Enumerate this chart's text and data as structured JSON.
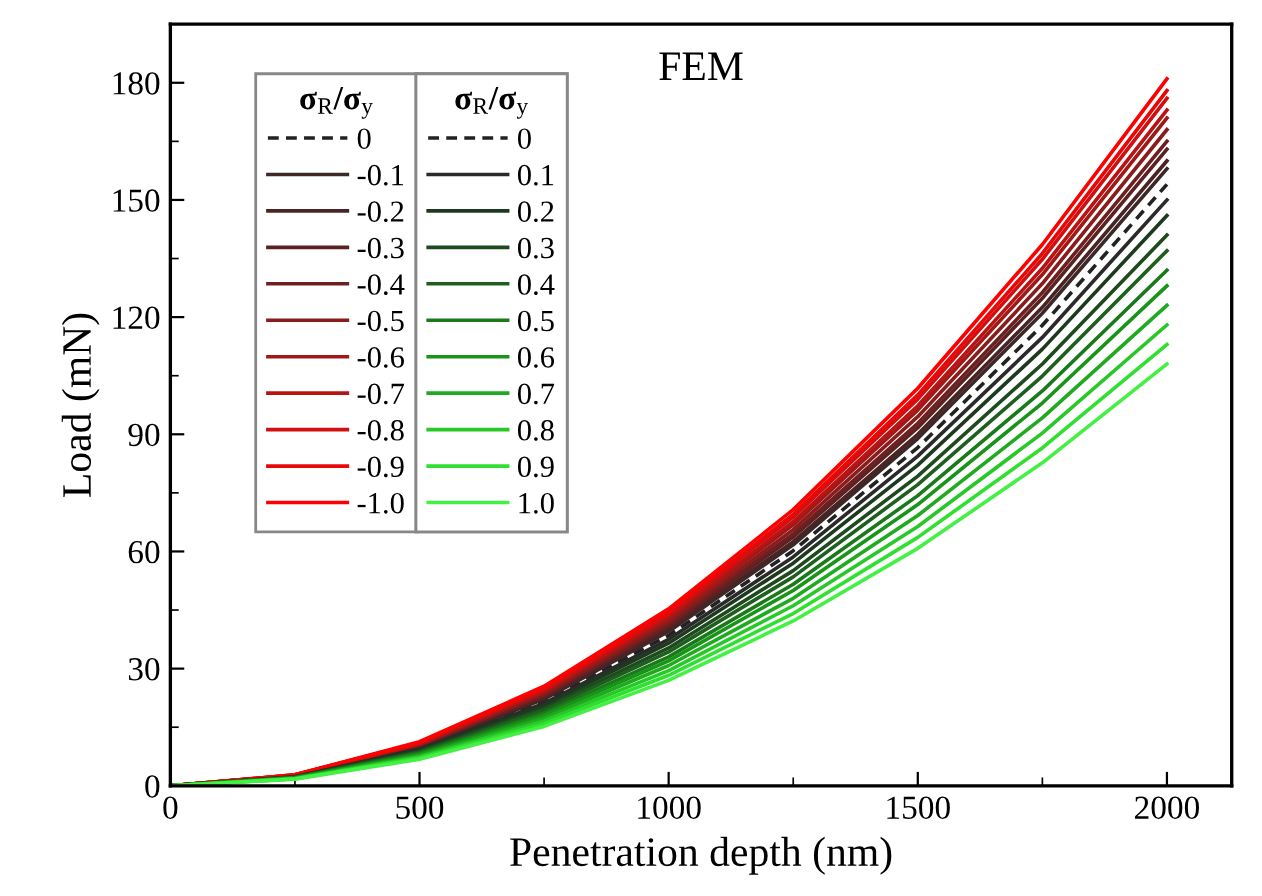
{
  "chart_data": {
    "type": "line",
    "title": "FEM",
    "xlabel": "Penetration depth (nm)",
    "ylabel": "Load (mN)",
    "legend_title": "σ$_{R}$/σ$_{y}$",
    "legend": "top left",
    "grid": false,
    "marker": "none",
    "x": [
      0,
      250,
      500,
      750,
      1000,
      1250,
      1500,
      1750,
      2000
    ],
    "xlim": [
      0,
      2130
    ],
    "xticks": [
      0,
      500,
      1000,
      1500,
      2000
    ],
    "ylim": [
      0,
      195
    ],
    "yticks": [
      0,
      30,
      60,
      90,
      120,
      150,
      180
    ],
    "series": [
      {
        "name": "0",
        "color": "#222222",
        "line_style": "dashed",
        "values": [
          0,
          2.4,
          9.6,
          21.7,
          38.5,
          60.2,
          86.6,
          117.9,
          154
        ]
      },
      {
        "name": "-0.1",
        "color": "#3c2828",
        "values": [
          0,
          2.5,
          9.9,
          22.2,
          39.5,
          61.7,
          88.9,
          121.0,
          158
        ]
      },
      {
        "name": "-0.2",
        "color": "#4a2424",
        "values": [
          0,
          2.5,
          10.0,
          22.5,
          40.0,
          62.5,
          90.0,
          122.5,
          160
        ]
      },
      {
        "name": "-0.3",
        "color": "#5c2222",
        "values": [
          0,
          2.5,
          10.2,
          22.9,
          40.8,
          63.7,
          91.7,
          124.8,
          163
        ]
      },
      {
        "name": "-0.4",
        "color": "#6e2020",
        "values": [
          0,
          2.6,
          10.3,
          23.2,
          41.3,
          64.5,
          92.8,
          126.3,
          165
        ]
      },
      {
        "name": "-0.5",
        "color": "#8a1c1c",
        "values": [
          0,
          2.6,
          10.5,
          23.6,
          42.0,
          65.6,
          94.5,
          128.6,
          168
        ]
      },
      {
        "name": "-0.6",
        "color": "#a01818",
        "values": [
          0,
          2.7,
          10.7,
          24.0,
          42.8,
          66.8,
          96.2,
          130.9,
          171
        ]
      },
      {
        "name": "-0.7",
        "color": "#b81414",
        "values": [
          0,
          2.7,
          10.8,
          24.3,
          43.3,
          67.6,
          97.3,
          132.5,
          173
        ]
      },
      {
        "name": "-0.8",
        "color": "#d01010",
        "values": [
          0,
          2.8,
          11.0,
          24.8,
          44.0,
          68.8,
          99.0,
          134.8,
          176
        ]
      },
      {
        "name": "-0.9",
        "color": "#e80808",
        "values": [
          0,
          2.8,
          11.1,
          25.0,
          44.5,
          69.5,
          100.1,
          136.3,
          178
        ]
      },
      {
        "name": "-1.0",
        "color": "#ff0000",
        "values": [
          0,
          2.8,
          11.3,
          25.5,
          45.3,
          70.7,
          101.8,
          138.6,
          181
        ]
      },
      {
        "name": "0.1",
        "color": "#2a2a2a",
        "values": [
          0,
          2.3,
          9.4,
          21.1,
          37.5,
          58.6,
          84.4,
          114.8,
          150
        ]
      },
      {
        "name": "0.2",
        "color": "#1e3a1e",
        "values": [
          0,
          2.3,
          9.1,
          20.5,
          36.5,
          57.0,
          82.1,
          111.8,
          146
        ]
      },
      {
        "name": "0.3",
        "color": "#1e4a1e",
        "values": [
          0,
          2.2,
          8.8,
          19.8,
          35.3,
          55.1,
          79.3,
          108.0,
          141
        ]
      },
      {
        "name": "0.4",
        "color": "#1e5e1e",
        "values": [
          0,
          2.1,
          8.6,
          19.3,
          34.3,
          53.5,
          77.1,
          104.9,
          137
        ]
      },
      {
        "name": "0.5",
        "color": "#1a7a1a",
        "values": [
          0,
          2.1,
          8.3,
          18.6,
          33.0,
          51.6,
          74.3,
          101.1,
          132
        ]
      },
      {
        "name": "0.6",
        "color": "#189418",
        "values": [
          0,
          2.0,
          8.0,
          18.0,
          32.0,
          50.0,
          72.0,
          98.0,
          128
        ]
      },
      {
        "name": "0.7",
        "color": "#20aa20",
        "values": [
          0,
          1.9,
          7.7,
          17.3,
          30.8,
          48.0,
          69.2,
          94.2,
          123
        ]
      },
      {
        "name": "0.8",
        "color": "#28c828",
        "values": [
          0,
          1.8,
          7.4,
          16.6,
          29.5,
          46.1,
          66.4,
          90.3,
          118
        ]
      },
      {
        "name": "0.9",
        "color": "#30e030",
        "values": [
          0,
          1.8,
          7.1,
          15.9,
          28.3,
          44.1,
          63.6,
          86.5,
          113
        ]
      },
      {
        "name": "1.0",
        "color": "#44f044",
        "values": [
          0,
          1.7,
          6.8,
          15.2,
          27.0,
          42.2,
          60.8,
          82.7,
          108
        ]
      }
    ]
  }
}
